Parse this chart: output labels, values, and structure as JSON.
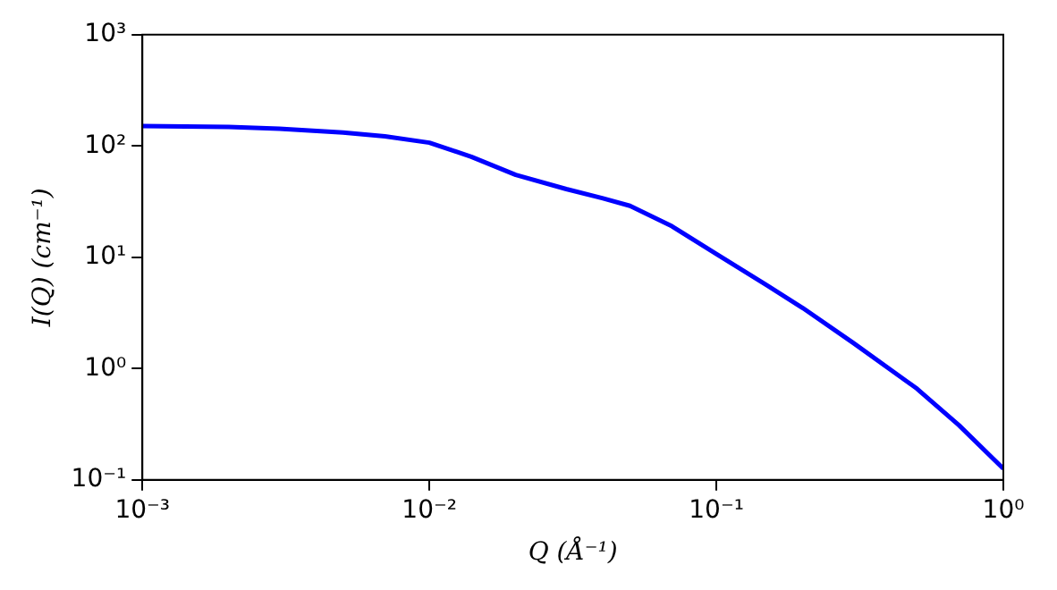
{
  "chart_data": {
    "type": "line",
    "xlabel": "Q (Å⁻¹)",
    "ylabel": "I(Q) (cm⁻¹)",
    "log": "xy",
    "grid": false,
    "legend": false,
    "marker": "none",
    "line_style": "solid",
    "x": [
      0.001,
      0.002,
      0.003,
      0.005,
      0.007,
      0.01,
      0.014,
      0.02,
      0.03,
      0.04,
      0.05,
      0.07,
      0.1,
      0.15,
      0.2,
      0.3,
      0.5,
      0.7,
      1
    ],
    "series": [
      {
        "color": "#0000ff",
        "values": [
          151,
          148,
          143,
          132,
          122,
          107,
          80,
          55,
          41,
          34,
          29,
          19,
          10.7,
          5.6,
          3.5,
          1.7,
          0.66,
          0.31,
          0.126
        ]
      }
    ],
    "xlim": [
      0.001,
      1
    ],
    "xticks": [
      {
        "value": 0.001,
        "label": "10⁻³"
      },
      {
        "value": 0.01,
        "label": "10⁻²"
      },
      {
        "value": 0.1,
        "label": "10⁻¹"
      },
      {
        "value": 1,
        "label": "10⁰"
      }
    ],
    "ylim": [
      0.1,
      1000
    ],
    "yticks": [
      {
        "value": 0.1,
        "label": "10⁻¹"
      },
      {
        "value": 1,
        "label": "10⁰"
      },
      {
        "value": 10,
        "label": "10¹"
      },
      {
        "value": 100,
        "label": "10²"
      },
      {
        "value": 1000,
        "label": "10³"
      }
    ]
  }
}
